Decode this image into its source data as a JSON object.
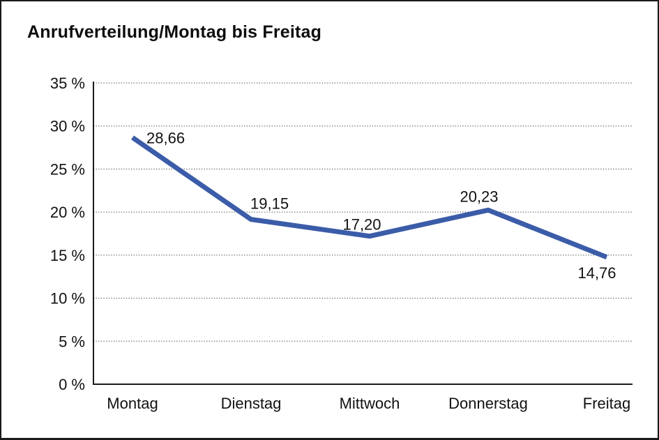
{
  "chart_data": {
    "type": "line",
    "title": "Anrufverteilung/Montag bis Freitag",
    "categories": [
      "Montag",
      "Dienstag",
      "Mittwoch",
      "Donnerstag",
      "Freitag"
    ],
    "values": [
      28.66,
      19.15,
      17.2,
      20.23,
      14.76
    ],
    "value_labels": [
      "28,66",
      "19,15",
      "17,20",
      "20,23",
      "14,76"
    ],
    "series_name": "Anrufverteilung",
    "xlabel": "",
    "ylabel": "",
    "y_tick_labels": [
      "0 %",
      "5 %",
      "10 %",
      "15 %",
      "20 %",
      "25 %",
      "30 %",
      "35 %"
    ],
    "ylim": [
      0,
      35
    ],
    "y_tick_step": 5,
    "grid": "dotted-horizontal",
    "legend": "none",
    "colors": {
      "line": "#3b5ca8",
      "text": "#111111",
      "axis": "#1a1a1a",
      "grid_dots": "#4d4d4d",
      "background": "#ffffff",
      "border": "#1a1a1a"
    }
  }
}
